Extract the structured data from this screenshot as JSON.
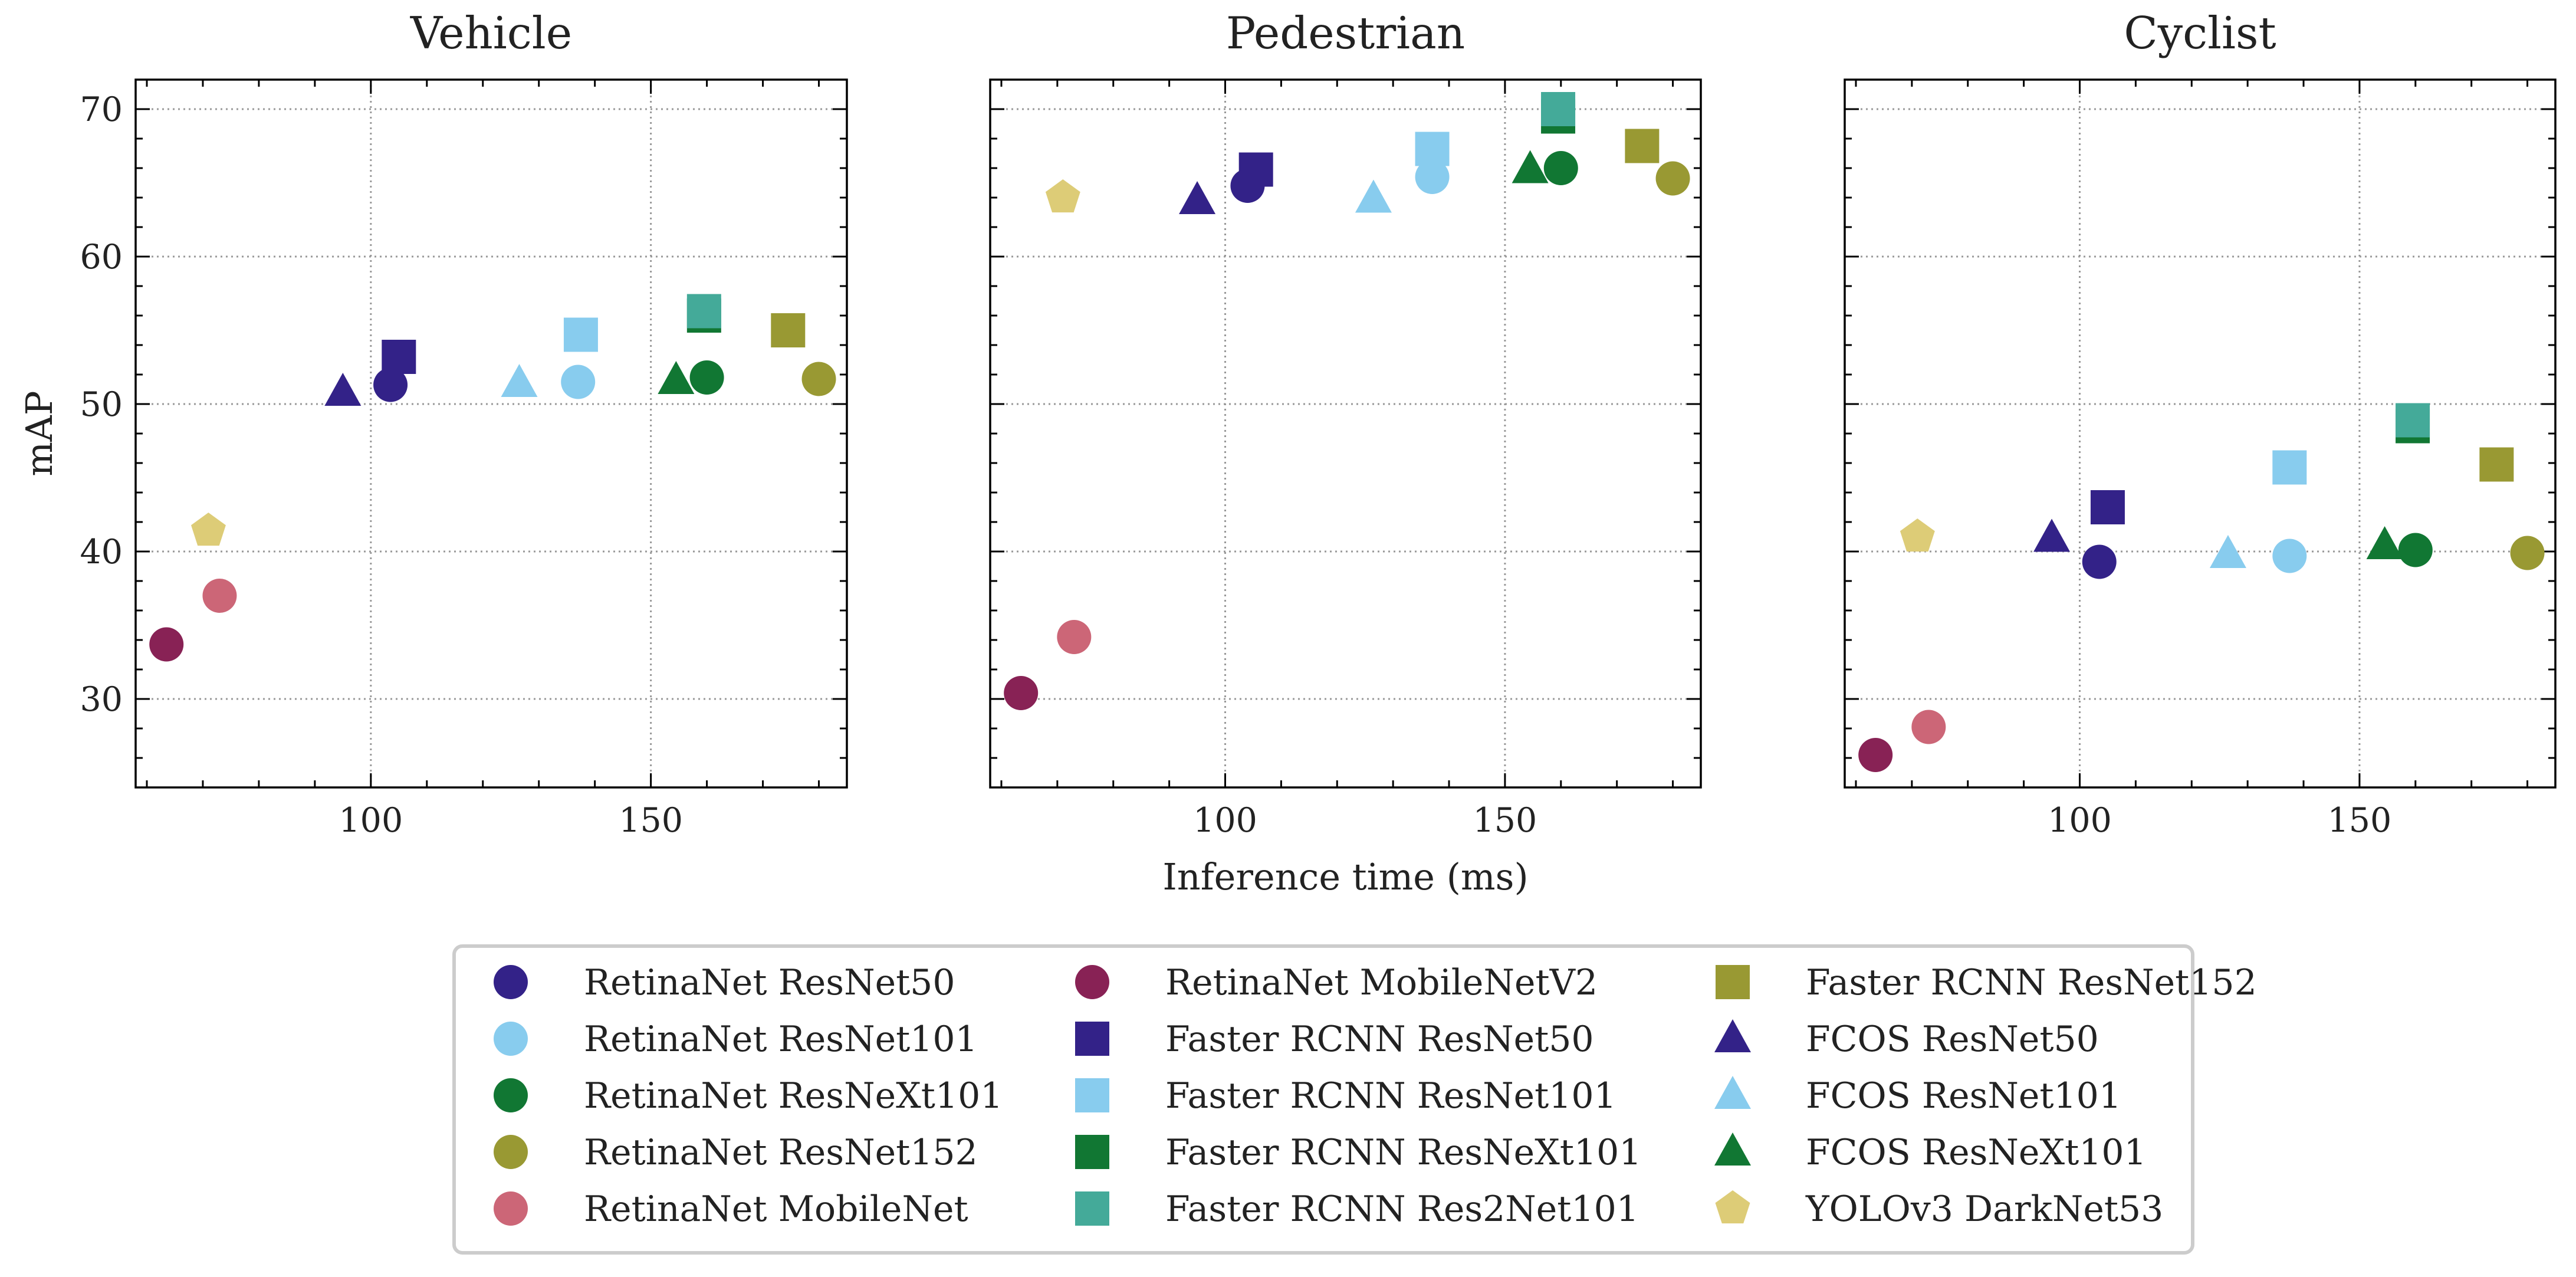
{
  "chart_data": {
    "type": "scatter",
    "shared": {
      "xlabel": "Inference time (ms)",
      "ylabel": "mAP",
      "xlim": [
        58,
        185
      ],
      "ylim": [
        24,
        72
      ],
      "xticks": [
        100,
        150
      ],
      "yticks": [
        30,
        40,
        50,
        60,
        70
      ],
      "grid": true,
      "legend_position": "bottom-center"
    },
    "panels": [
      {
        "title": "Vehicle",
        "points": [
          {
            "model": "RetinaNet ResNet50",
            "x": 103.5,
            "y": 51.3
          },
          {
            "model": "RetinaNet ResNet101",
            "x": 137.0,
            "y": 51.5
          },
          {
            "model": "RetinaNet ResNeXt101",
            "x": 160.0,
            "y": 51.8
          },
          {
            "model": "RetinaNet ResNet152",
            "x": 180.0,
            "y": 51.7
          },
          {
            "model": "RetinaNet MobileNet",
            "x": 73.0,
            "y": 37.0
          },
          {
            "model": "RetinaNet MobileNetV2",
            "x": 63.5,
            "y": 33.7
          },
          {
            "model": "Faster RCNN ResNet50",
            "x": 105.0,
            "y": 53.2
          },
          {
            "model": "Faster RCNN ResNet101",
            "x": 137.5,
            "y": 54.7
          },
          {
            "model": "Faster RCNN ResNeXt101",
            "x": 159.5,
            "y": 56.0
          },
          {
            "model": "Faster RCNN Res2Net101",
            "x": 159.5,
            "y": 56.3
          },
          {
            "model": "Faster RCNN ResNet152",
            "x": 174.5,
            "y": 55.0
          },
          {
            "model": "FCOS ResNet50",
            "x": 95.0,
            "y": 50.8
          },
          {
            "model": "FCOS ResNet101",
            "x": 126.5,
            "y": 51.4
          },
          {
            "model": "FCOS ResNeXt101",
            "x": 154.5,
            "y": 51.6
          },
          {
            "model": "YOLOv3 DarkNet53",
            "x": 71.0,
            "y": 41.4
          }
        ]
      },
      {
        "title": "Pedestrian",
        "points": [
          {
            "model": "RetinaNet ResNet50",
            "x": 104.0,
            "y": 64.8
          },
          {
            "model": "RetinaNet ResNet101",
            "x": 137.0,
            "y": 65.4
          },
          {
            "model": "RetinaNet ResNeXt101",
            "x": 160.0,
            "y": 66.0
          },
          {
            "model": "RetinaNet ResNet152",
            "x": 180.0,
            "y": 65.3
          },
          {
            "model": "RetinaNet MobileNet",
            "x": 73.0,
            "y": 34.2
          },
          {
            "model": "RetinaNet MobileNetV2",
            "x": 63.5,
            "y": 30.4
          },
          {
            "model": "Faster RCNN ResNet50",
            "x": 105.5,
            "y": 65.9
          },
          {
            "model": "Faster RCNN ResNet101",
            "x": 137.0,
            "y": 67.3
          },
          {
            "model": "Faster RCNN ResNeXt101",
            "x": 159.5,
            "y": 69.5
          },
          {
            "model": "Faster RCNN Res2Net101",
            "x": 159.5,
            "y": 70.0
          },
          {
            "model": "Faster RCNN ResNet152",
            "x": 174.5,
            "y": 67.5
          },
          {
            "model": "FCOS ResNet50",
            "x": 95.0,
            "y": 63.8
          },
          {
            "model": "FCOS ResNet101",
            "x": 126.5,
            "y": 63.9
          },
          {
            "model": "FCOS ResNeXt101",
            "x": 154.5,
            "y": 65.9
          },
          {
            "model": "YOLOv3 DarkNet53",
            "x": 71.0,
            "y": 64.0
          }
        ]
      },
      {
        "title": "Cyclist",
        "points": [
          {
            "model": "RetinaNet ResNet50",
            "x": 103.5,
            "y": 39.3
          },
          {
            "model": "RetinaNet ResNet101",
            "x": 137.5,
            "y": 39.7
          },
          {
            "model": "RetinaNet ResNeXt101",
            "x": 160.0,
            "y": 40.1
          },
          {
            "model": "RetinaNet ResNet152",
            "x": 180.0,
            "y": 39.9
          },
          {
            "model": "RetinaNet MobileNet",
            "x": 73.0,
            "y": 28.1
          },
          {
            "model": "RetinaNet MobileNetV2",
            "x": 63.5,
            "y": 26.2
          },
          {
            "model": "Faster RCNN ResNet50",
            "x": 105.0,
            "y": 43.0
          },
          {
            "model": "Faster RCNN ResNet101",
            "x": 137.5,
            "y": 45.7
          },
          {
            "model": "Faster RCNN ResNeXt101",
            "x": 159.5,
            "y": 48.5
          },
          {
            "model": "Faster RCNN Res2Net101",
            "x": 159.5,
            "y": 48.9
          },
          {
            "model": "Faster RCNN ResNet152",
            "x": 174.5,
            "y": 45.9
          },
          {
            "model": "FCOS ResNet50",
            "x": 95.0,
            "y": 40.9
          },
          {
            "model": "FCOS ResNet101",
            "x": 126.5,
            "y": 39.8
          },
          {
            "model": "FCOS ResNeXt101",
            "x": 154.5,
            "y": 40.4
          },
          {
            "model": "YOLOv3 DarkNet53",
            "x": 71.0,
            "y": 41.0
          }
        ]
      }
    ],
    "legend": [
      {
        "label": "RetinaNet ResNet50",
        "marker": "circle",
        "color": "#332288"
      },
      {
        "label": "RetinaNet ResNet101",
        "marker": "circle",
        "color": "#88CCEE"
      },
      {
        "label": "RetinaNet ResNeXt101",
        "marker": "circle",
        "color": "#117733"
      },
      {
        "label": "RetinaNet ResNet152",
        "marker": "circle",
        "color": "#999933"
      },
      {
        "label": "RetinaNet MobileNet",
        "marker": "circle",
        "color": "#CC6677"
      },
      {
        "label": "RetinaNet MobileNetV2",
        "marker": "circle",
        "color": "#882255"
      },
      {
        "label": "Faster RCNN ResNet50",
        "marker": "square",
        "color": "#332288"
      },
      {
        "label": "Faster RCNN ResNet101",
        "marker": "square",
        "color": "#88CCEE"
      },
      {
        "label": "Faster RCNN ResNeXt101",
        "marker": "square",
        "color": "#117733"
      },
      {
        "label": "Faster RCNN Res2Net101",
        "marker": "square",
        "color": "#44AA99"
      },
      {
        "label": "Faster RCNN ResNet152",
        "marker": "square",
        "color": "#999933"
      },
      {
        "label": "FCOS ResNet50",
        "marker": "triangle",
        "color": "#332288"
      },
      {
        "label": "FCOS ResNet101",
        "marker": "triangle",
        "color": "#88CCEE"
      },
      {
        "label": "FCOS ResNeXt101",
        "marker": "triangle",
        "color": "#117733"
      },
      {
        "label": "YOLOv3 DarkNet53",
        "marker": "pentagon",
        "color": "#DDCC77"
      }
    ]
  }
}
